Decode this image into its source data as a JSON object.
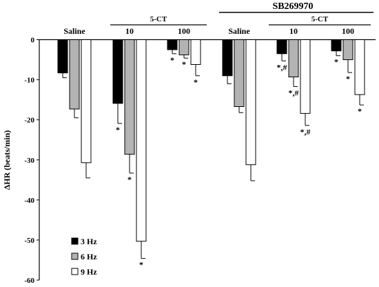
{
  "chart_data": {
    "type": "bar",
    "ylabel": "ΔHR (beats/min)",
    "ylim": [
      -60,
      0
    ],
    "yticks": [
      0,
      -10,
      -20,
      -30,
      -40,
      -50,
      -60
    ],
    "grid": false,
    "legend_placement": "bottom-left",
    "categories": [
      "Saline",
      "10",
      "100",
      "Saline",
      "10",
      "100"
    ],
    "group_headers": {
      "five_ct_left": "5-CT",
      "sb_title": "SB269970",
      "five_ct_right": "5-CT"
    },
    "series": [
      {
        "name": "3 Hz",
        "color": "#000000",
        "values": [
          -8.3,
          -15.9,
          -2.5,
          -9.0,
          -3.5,
          -2.8
        ],
        "errors": [
          1.2,
          5.0,
          1.0,
          2.0,
          1.8,
          1.2
        ],
        "annotations": [
          "",
          "*",
          "*",
          "",
          "*,#",
          "*"
        ]
      },
      {
        "name": "6 Hz",
        "color": "#b3b3b3",
        "values": [
          -17.3,
          -28.6,
          -3.8,
          -16.7,
          -9.3,
          -5.0
        ],
        "errors": [
          2.2,
          4.7,
          0.8,
          1.5,
          2.4,
          3.2
        ],
        "annotations": [
          "",
          "*",
          "*",
          "",
          "*,#",
          "*"
        ]
      },
      {
        "name": "9 Hz",
        "color": "#ffffff",
        "values": [
          -30.7,
          -50.3,
          -6.2,
          -31.2,
          -18.4,
          -13.7
        ],
        "errors": [
          3.8,
          4.3,
          2.8,
          4.0,
          3.0,
          2.6
        ],
        "annotations": [
          "",
          "*",
          "*",
          "",
          "*,#",
          "*"
        ]
      }
    ]
  }
}
